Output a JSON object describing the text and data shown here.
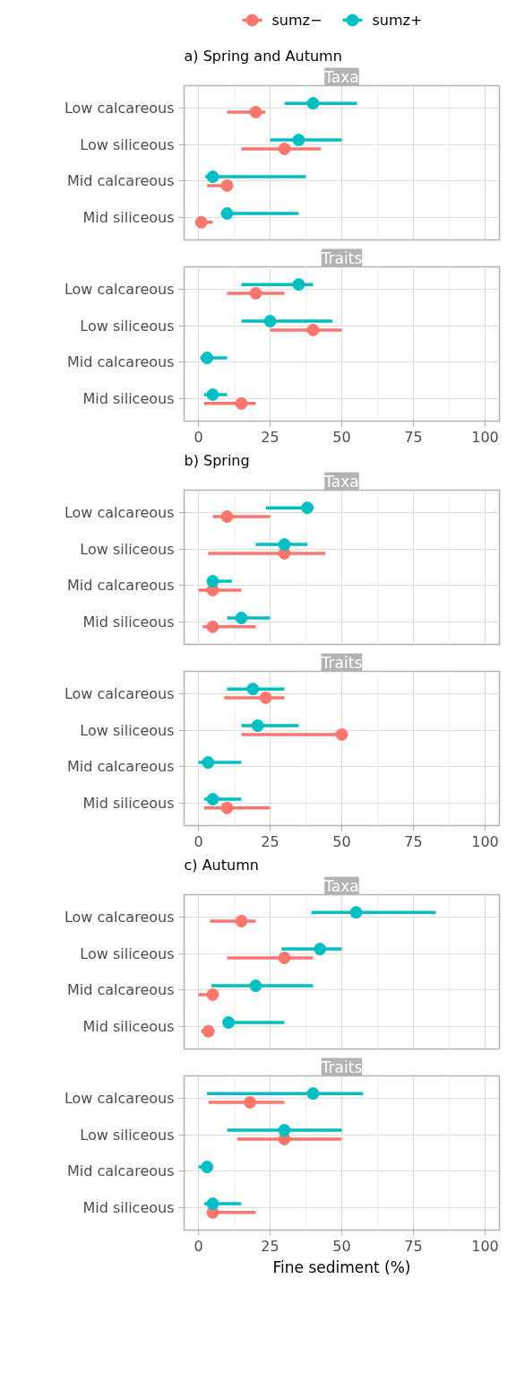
{
  "chart_data": [
    {
      "type": "scatter",
      "orientation": "horizontal",
      "subtitle": "a) Spring and Autumn",
      "title": "Taxa",
      "categories": [
        "Low calcareous",
        "Low siliceous",
        "Mid calcareous",
        "Mid siliceous"
      ],
      "xlim": [
        -5,
        105
      ],
      "xticks": [
        0,
        25,
        50,
        75,
        100
      ],
      "tick_labels": "y",
      "grid": true,
      "legend": "top",
      "marker": "circle",
      "series": [
        {
          "name": "sumz−",
          "color": "#f8766d",
          "values": [
            20,
            30,
            10,
            1
          ],
          "errors": [
            [
              10,
              23.3
            ],
            [
              15,
              42.7
            ],
            [
              3,
              10
            ],
            [
              1,
              5
            ]
          ]
        },
        {
          "name": "sumz+",
          "color": "#00bfc4",
          "values": [
            40,
            35,
            5,
            10
          ],
          "errors": [
            [
              30,
              55.3
            ],
            [
              25,
              50
            ],
            [
              2.4,
              37.5
            ],
            [
              10,
              35
            ]
          ]
        }
      ]
    },
    {
      "type": "scatter",
      "orientation": "horizontal",
      "title": "Traits",
      "categories": [
        "Low calcareous",
        "Low siliceous",
        "Mid calcareous",
        "Mid siliceous"
      ],
      "xlim": [
        -5,
        105
      ],
      "xticks": [
        0,
        25,
        50,
        75,
        100
      ],
      "grid": true,
      "marker": "circle",
      "series": [
        {
          "color": "#f8766d",
          "values": [
            20,
            40,
            null,
            15
          ],
          "errors": [
            [
              10,
              30
            ],
            [
              25,
              50
            ],
            null,
            [
              2,
              20
            ]
          ]
        },
        {
          "color": "#00bfc4",
          "values": [
            35,
            25,
            3,
            5
          ],
          "errors": [
            [
              15,
              40
            ],
            [
              15,
              46.8
            ],
            [
              0.6,
              10
            ],
            [
              2,
              10
            ]
          ]
        }
      ]
    },
    {
      "type": "scatter",
      "orientation": "horizontal",
      "subtitle": "b) Spring",
      "title": "Taxa",
      "categories": [
        "Low calcareous",
        "Low siliceous",
        "Mid calcareous",
        "Mid siliceous"
      ],
      "xlim": [
        -5,
        105
      ],
      "xticks": [
        0,
        25,
        50,
        75,
        100
      ],
      "tick_labels": "y",
      "grid": true,
      "marker": "circle",
      "series": [
        {
          "color": "#f8766d",
          "values": [
            10,
            30,
            5,
            5
          ],
          "errors": [
            [
              5,
              25
            ],
            [
              3.4,
              44.3
            ],
            [
              0,
              15
            ],
            [
              1.5,
              20
            ]
          ]
        },
        {
          "color": "#00bfc4",
          "values": [
            38,
            30,
            5,
            15
          ],
          "errors": [
            [
              23.5,
              38
            ],
            [
              20,
              38
            ],
            [
              5,
              11.7
            ],
            [
              10,
              25
            ]
          ]
        }
      ]
    },
    {
      "type": "scatter",
      "orientation": "horizontal",
      "title": "Traits",
      "categories": [
        "Low calcareous",
        "Low siliceous",
        "Mid calcareous",
        "Mid siliceous"
      ],
      "xlim": [
        -5,
        105
      ],
      "xticks": [
        0,
        25,
        50,
        75,
        100
      ],
      "grid": true,
      "marker": "circle",
      "series": [
        {
          "color": "#f8766d",
          "values": [
            23.5,
            50,
            null,
            10
          ],
          "errors": [
            [
              9,
              30
            ],
            [
              15,
              50
            ],
            null,
            [
              2,
              25
            ]
          ]
        },
        {
          "color": "#00bfc4",
          "values": [
            19,
            20.7,
            3.4,
            5
          ],
          "errors": [
            [
              10,
              30
            ],
            [
              15,
              35
            ],
            [
              0,
              15
            ],
            [
              2,
              15
            ]
          ]
        }
      ]
    },
    {
      "type": "scatter",
      "orientation": "horizontal",
      "subtitle": "c) Autumn",
      "title": "Taxa",
      "categories": [
        "Low calcareous",
        "Low siliceous",
        "Mid calcareous",
        "Mid siliceous"
      ],
      "xlim": [
        -5,
        105
      ],
      "xticks": [
        0,
        25,
        50,
        75,
        100
      ],
      "tick_labels": "y",
      "grid": true,
      "marker": "circle",
      "series": [
        {
          "color": "#f8766d",
          "values": [
            15,
            30,
            5,
            3.5
          ],
          "errors": [
            [
              4,
              20
            ],
            [
              10,
              40
            ],
            [
              0,
              5
            ],
            [
              1,
              3.5
            ]
          ]
        },
        {
          "color": "#00bfc4",
          "values": [
            55,
            42.4,
            20,
            10.5
          ],
          "errors": [
            [
              39.4,
              82.8
            ],
            [
              29,
              50
            ],
            [
              4.5,
              40
            ],
            [
              10.5,
              30
            ]
          ]
        }
      ]
    },
    {
      "type": "scatter",
      "orientation": "horizontal",
      "title": "Traits",
      "xlabel": "Fine sediment (%)",
      "categories": [
        "Low calcareous",
        "Low siliceous",
        "Mid calcareous",
        "Mid siliceous"
      ],
      "xlim": [
        -5,
        105
      ],
      "xticks": [
        0,
        25,
        50,
        75,
        100
      ],
      "grid": true,
      "marker": "circle",
      "series": [
        {
          "color": "#f8766d",
          "values": [
            18,
            30,
            null,
            5
          ],
          "errors": [
            [
              3.5,
              30
            ],
            [
              13.5,
              50
            ],
            null,
            [
              4,
              20
            ]
          ]
        },
        {
          "color": "#00bfc4",
          "values": [
            40,
            30,
            3,
            5
          ],
          "errors": [
            [
              3,
              57.4
            ],
            [
              10,
              50
            ],
            [
              0,
              3
            ],
            [
              2,
              15
            ]
          ]
        }
      ]
    }
  ]
}
